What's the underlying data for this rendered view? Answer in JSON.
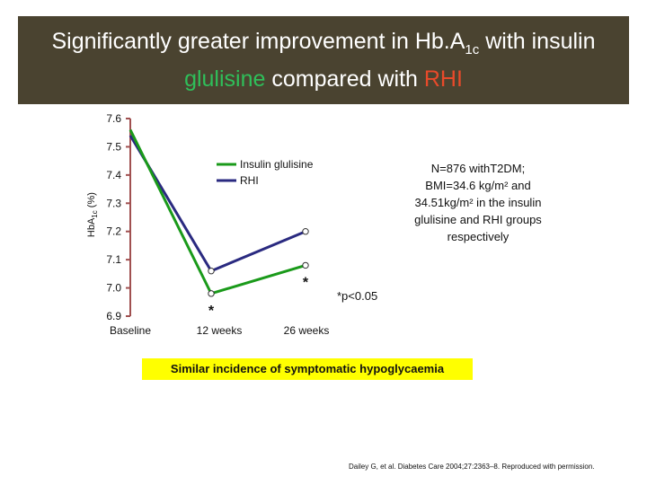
{
  "header": {
    "title_part1": "Significantly greater improvement in Hb.A",
    "title_sub": "1c",
    "title_part2": " with insulin",
    "title_line2_part1": "glulisine",
    "title_line2_part2": " compared with ",
    "title_line2_part3": "RHI"
  },
  "colors": {
    "title_bg": "#4a4330",
    "glulisine": "#2fbf5a",
    "rhi": "#e84a2a",
    "series_glulisine": "#1a9a1a",
    "series_rhi": "#2a2a80",
    "axis": "#a05050",
    "highlight": "#ffff00"
  },
  "y_axis_label": {
    "part1": "HbA",
    "sub": "1c",
    "part2": " (%)"
  },
  "chart_data": {
    "type": "line",
    "categories": [
      "Baseline",
      "12 weeks",
      "26 weeks"
    ],
    "x_positions": [
      0,
      12,
      26
    ],
    "xlim": [
      0,
      26
    ],
    "ylim": [
      6.9,
      7.6
    ],
    "ytick_values": [
      6.9,
      7.0,
      7.1,
      7.2,
      7.3,
      7.4,
      7.5,
      7.6
    ],
    "ytick_labels": [
      "6.9",
      "7.0",
      "7.1",
      "7.2",
      "7.3",
      "7.4",
      "7.5",
      "7.6"
    ],
    "series": [
      {
        "name": "Insulin glulisine",
        "values": [
          7.56,
          6.98,
          7.08
        ]
      },
      {
        "name": "RHI",
        "values": [
          7.54,
          7.06,
          7.2
        ]
      }
    ],
    "significance_markers": [
      {
        "series": 0,
        "index": 1,
        "label": "*"
      },
      {
        "series": 0,
        "index": 2,
        "label": "*"
      }
    ],
    "legend": [
      "Insulin glulisine",
      "RHI"
    ]
  },
  "annotation": {
    "note_line1": "N=876 withT2DM;",
    "note_line2": "BMI=34.6 kg/m² and",
    "note_line3": "34.51kg/m² in the insulin",
    "note_line4": "glulisine and RHI groups",
    "note_line5": "respectively",
    "p_value": "*p<0.05"
  },
  "hypoglycaemia_note": "Similar incidence of symptomatic hypoglycaemia",
  "citation": "Dailey G, et al. Diabetes Care 2004;27:2363–8. Reproduced with permission."
}
